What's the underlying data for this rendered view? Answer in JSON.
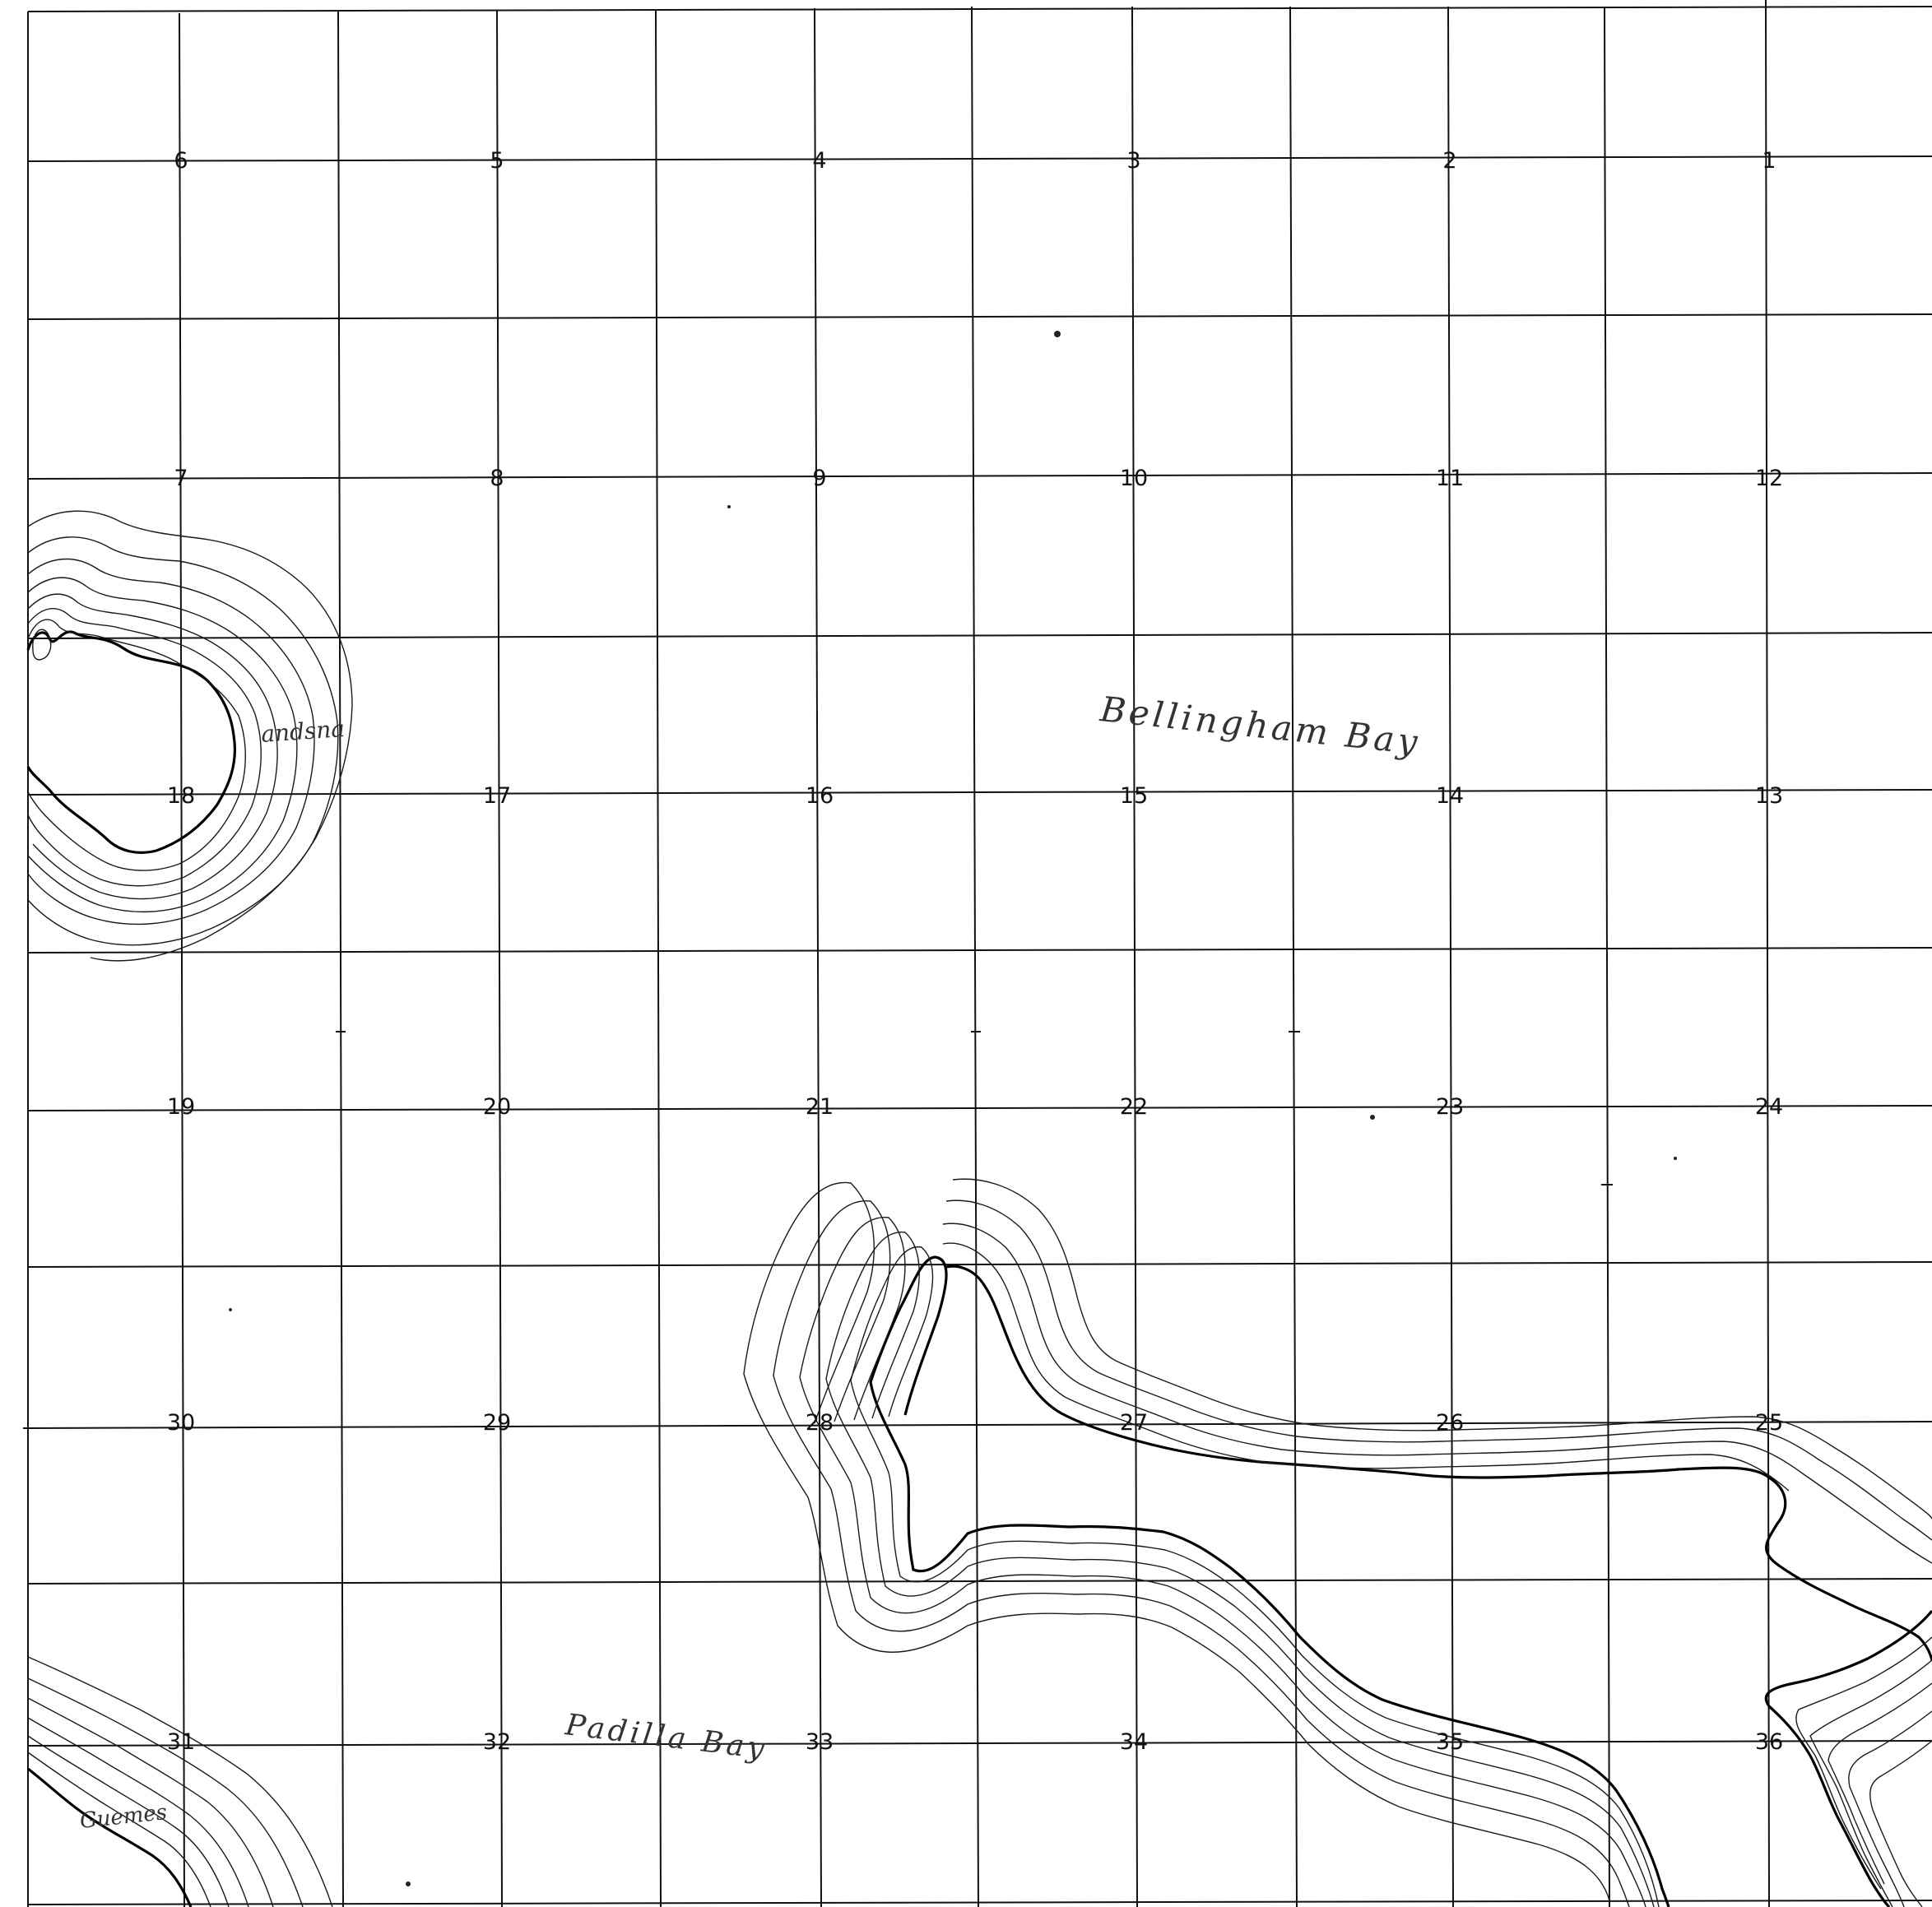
{
  "map": {
    "sections": [
      {
        "row": 0,
        "col": 0,
        "number": "6"
      },
      {
        "row": 0,
        "col": 1,
        "number": "5"
      },
      {
        "row": 0,
        "col": 2,
        "number": "4"
      },
      {
        "row": 0,
        "col": 3,
        "number": "3"
      },
      {
        "row": 0,
        "col": 4,
        "number": "2"
      },
      {
        "row": 0,
        "col": 5,
        "number": "1"
      },
      {
        "row": 1,
        "col": 0,
        "number": "7"
      },
      {
        "row": 1,
        "col": 1,
        "number": "8"
      },
      {
        "row": 1,
        "col": 2,
        "number": "9"
      },
      {
        "row": 1,
        "col": 3,
        "number": "10"
      },
      {
        "row": 1,
        "col": 4,
        "number": "11"
      },
      {
        "row": 1,
        "col": 5,
        "number": "12"
      },
      {
        "row": 2,
        "col": 0,
        "number": "18"
      },
      {
        "row": 2,
        "col": 1,
        "number": "17"
      },
      {
        "row": 2,
        "col": 2,
        "number": "16"
      },
      {
        "row": 2,
        "col": 3,
        "number": "15"
      },
      {
        "row": 2,
        "col": 4,
        "number": "14"
      },
      {
        "row": 2,
        "col": 5,
        "number": "13"
      },
      {
        "row": 3,
        "col": 0,
        "number": "19"
      },
      {
        "row": 3,
        "col": 1,
        "number": "20"
      },
      {
        "row": 3,
        "col": 2,
        "number": "21"
      },
      {
        "row": 3,
        "col": 3,
        "number": "22"
      },
      {
        "row": 3,
        "col": 4,
        "number": "23"
      },
      {
        "row": 3,
        "col": 5,
        "number": "24"
      },
      {
        "row": 4,
        "col": 0,
        "number": "30"
      },
      {
        "row": 4,
        "col": 1,
        "number": "29"
      },
      {
        "row": 4,
        "col": 2,
        "number": "28"
      },
      {
        "row": 4,
        "col": 3,
        "number": "27"
      },
      {
        "row": 4,
        "col": 4,
        "number": "26"
      },
      {
        "row": 4,
        "col": 5,
        "number": "25"
      },
      {
        "row": 5,
        "col": 0,
        "number": "31"
      },
      {
        "row": 5,
        "col": 1,
        "number": "32"
      },
      {
        "row": 5,
        "col": 2,
        "number": "33"
      },
      {
        "row": 5,
        "col": 3,
        "number": "34"
      },
      {
        "row": 5,
        "col": 4,
        "number": "35"
      },
      {
        "row": 5,
        "col": 5,
        "number": "36"
      }
    ],
    "handwritten_labels": {
      "bellingham_bay": "Bellingham Bay",
      "padilla_bay": "Padilla Bay",
      "lummi_fragment": "andsna",
      "guemes_fragment": "Guemes"
    }
  }
}
